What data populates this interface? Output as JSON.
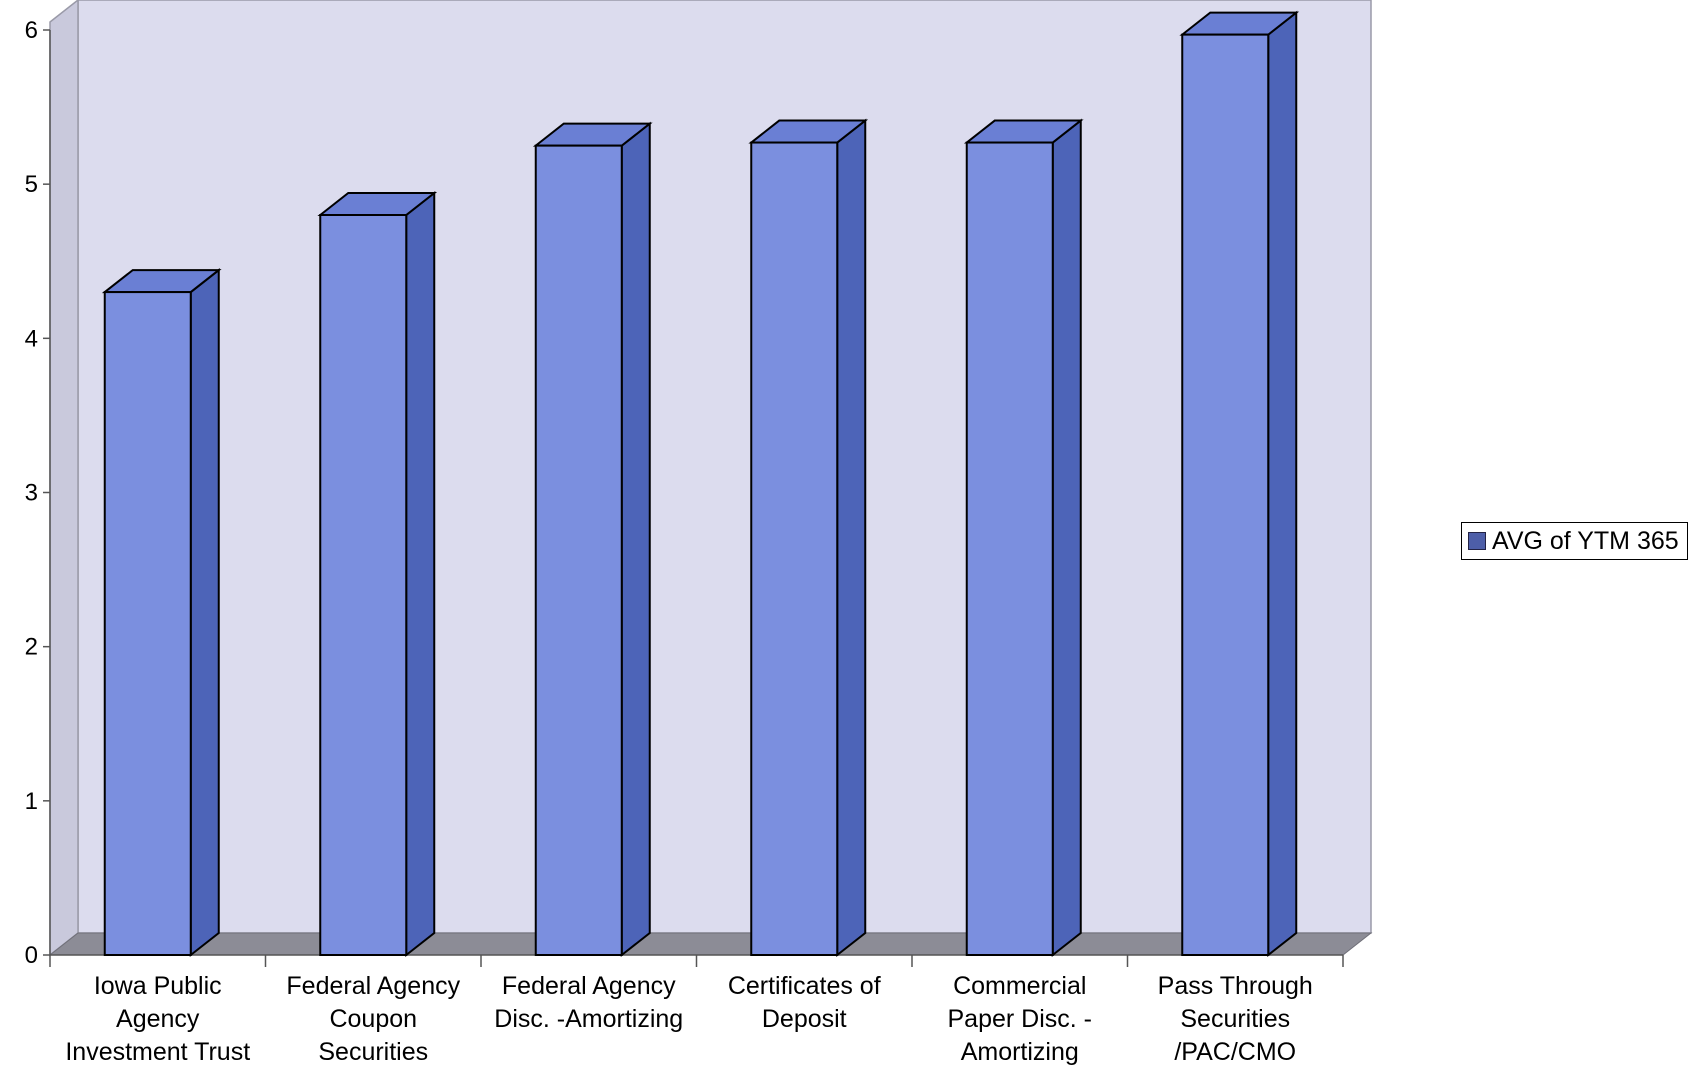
{
  "chart_data": {
    "type": "bar",
    "title": "",
    "xlabel": "",
    "ylabel": "",
    "ylim": [
      0,
      6
    ],
    "yticks": [
      "0",
      "1",
      "2",
      "3",
      "4",
      "5",
      "6"
    ],
    "categories": [
      [
        "Iowa Public",
        "Agency",
        "Investment Trust"
      ],
      [
        "Federal Agency",
        "Coupon",
        "Securities"
      ],
      [
        "Federal Agency",
        "Disc. -Amortizing"
      ],
      [
        "Certificates of",
        "Deposit"
      ],
      [
        "Commercial",
        "Paper Disc. -",
        "Amortizing"
      ],
      [
        "Pass Through",
        "Securities",
        "/PAC/CMO"
      ]
    ],
    "series": [
      {
        "name": "AVG of YTM 365",
        "values": [
          4.3,
          4.8,
          5.25,
          5.27,
          5.27,
          5.97
        ]
      }
    ],
    "grid": false,
    "three_d": true,
    "legend": "right"
  },
  "legend": {
    "label": "AVG of YTM 365"
  },
  "colors": {
    "bar_front": "#7b8fdf",
    "bar_side": "#4d64b8",
    "bar_top": "#6a7fd4",
    "plot_wall": "#dcdcee",
    "floor": "#8c8c96",
    "legend_swatch": "#4d5ea8",
    "outline": "#000000"
  }
}
